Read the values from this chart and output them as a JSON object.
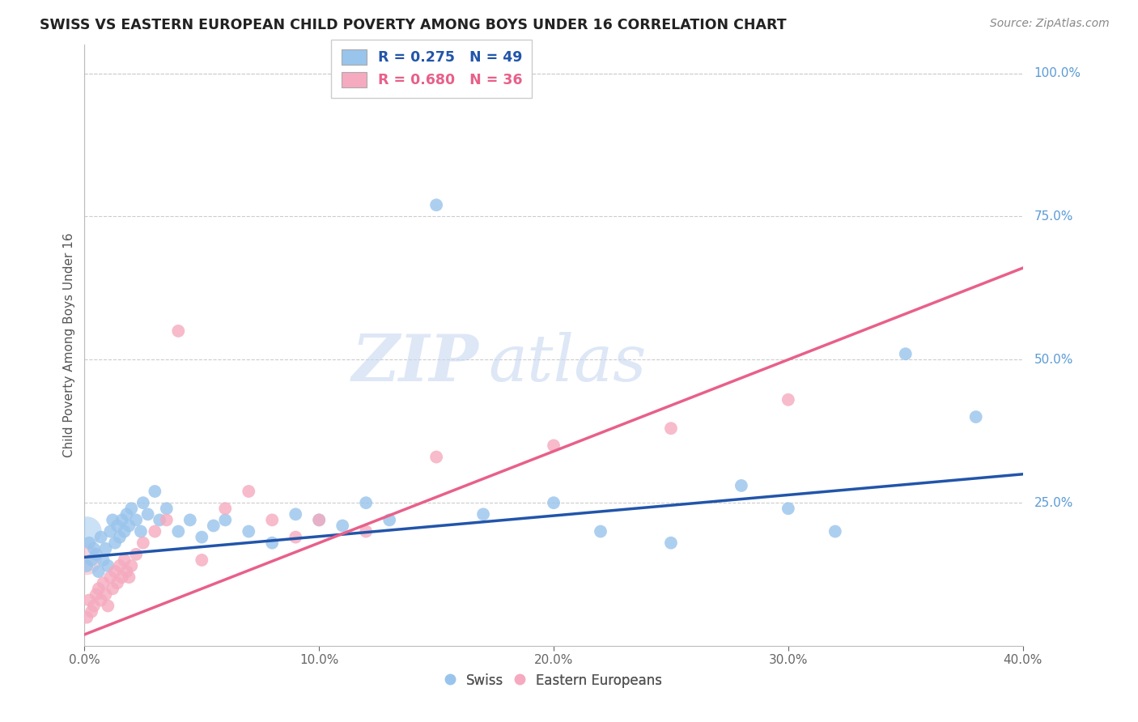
{
  "title": "SWISS VS EASTERN EUROPEAN CHILD POVERTY AMONG BOYS UNDER 16 CORRELATION CHART",
  "source": "Source: ZipAtlas.com",
  "ylabel": "Child Poverty Among Boys Under 16",
  "right_yticks": [
    "100.0%",
    "75.0%",
    "50.0%",
    "25.0%"
  ],
  "right_ytick_vals": [
    1.0,
    0.75,
    0.5,
    0.25
  ],
  "watermark_zip": "ZIP",
  "watermark_atlas": "atlas",
  "swiss_color": "#99C4EC",
  "ee_color": "#F5AABF",
  "swiss_line_color": "#2255AA",
  "ee_line_color": "#E8608A",
  "xlim": [
    0.0,
    0.4
  ],
  "ylim": [
    0.0,
    1.05
  ],
  "swiss_x": [
    0.001,
    0.002,
    0.003,
    0.004,
    0.005,
    0.006,
    0.007,
    0.008,
    0.009,
    0.01,
    0.011,
    0.012,
    0.013,
    0.014,
    0.015,
    0.016,
    0.017,
    0.018,
    0.019,
    0.02,
    0.022,
    0.024,
    0.025,
    0.027,
    0.03,
    0.032,
    0.035,
    0.04,
    0.045,
    0.05,
    0.055,
    0.06,
    0.07,
    0.08,
    0.09,
    0.1,
    0.11,
    0.12,
    0.13,
    0.15,
    0.17,
    0.2,
    0.22,
    0.25,
    0.28,
    0.3,
    0.32,
    0.35,
    0.38
  ],
  "swiss_y": [
    0.14,
    0.18,
    0.15,
    0.17,
    0.16,
    0.13,
    0.19,
    0.15,
    0.17,
    0.14,
    0.2,
    0.22,
    0.18,
    0.21,
    0.19,
    0.22,
    0.2,
    0.23,
    0.21,
    0.24,
    0.22,
    0.2,
    0.25,
    0.23,
    0.27,
    0.22,
    0.24,
    0.2,
    0.22,
    0.19,
    0.21,
    0.22,
    0.2,
    0.18,
    0.23,
    0.22,
    0.21,
    0.25,
    0.22,
    0.77,
    0.23,
    0.25,
    0.2,
    0.18,
    0.28,
    0.24,
    0.2,
    0.51,
    0.4
  ],
  "ee_x": [
    0.001,
    0.002,
    0.003,
    0.004,
    0.005,
    0.006,
    0.007,
    0.008,
    0.009,
    0.01,
    0.011,
    0.012,
    0.013,
    0.014,
    0.015,
    0.016,
    0.017,
    0.018,
    0.019,
    0.02,
    0.022,
    0.025,
    0.03,
    0.035,
    0.04,
    0.05,
    0.06,
    0.07,
    0.08,
    0.09,
    0.1,
    0.12,
    0.15,
    0.2,
    0.25,
    0.3
  ],
  "ee_y": [
    0.05,
    0.08,
    0.06,
    0.07,
    0.09,
    0.1,
    0.08,
    0.11,
    0.09,
    0.07,
    0.12,
    0.1,
    0.13,
    0.11,
    0.14,
    0.12,
    0.15,
    0.13,
    0.12,
    0.14,
    0.16,
    0.18,
    0.2,
    0.22,
    0.55,
    0.15,
    0.24,
    0.27,
    0.22,
    0.19,
    0.22,
    0.2,
    0.33,
    0.35,
    0.38,
    0.43
  ],
  "swiss_line_x": [
    0.0,
    0.4
  ],
  "swiss_line_y": [
    0.155,
    0.3
  ],
  "ee_line_x": [
    0.0,
    0.4
  ],
  "ee_line_y": [
    0.02,
    0.66
  ],
  "xtick_vals": [
    0.0,
    0.1,
    0.2,
    0.3,
    0.4
  ],
  "xtick_labels": [
    "0.0%",
    "10.0%",
    "20.0%",
    "30.0%",
    "40.0%"
  ]
}
